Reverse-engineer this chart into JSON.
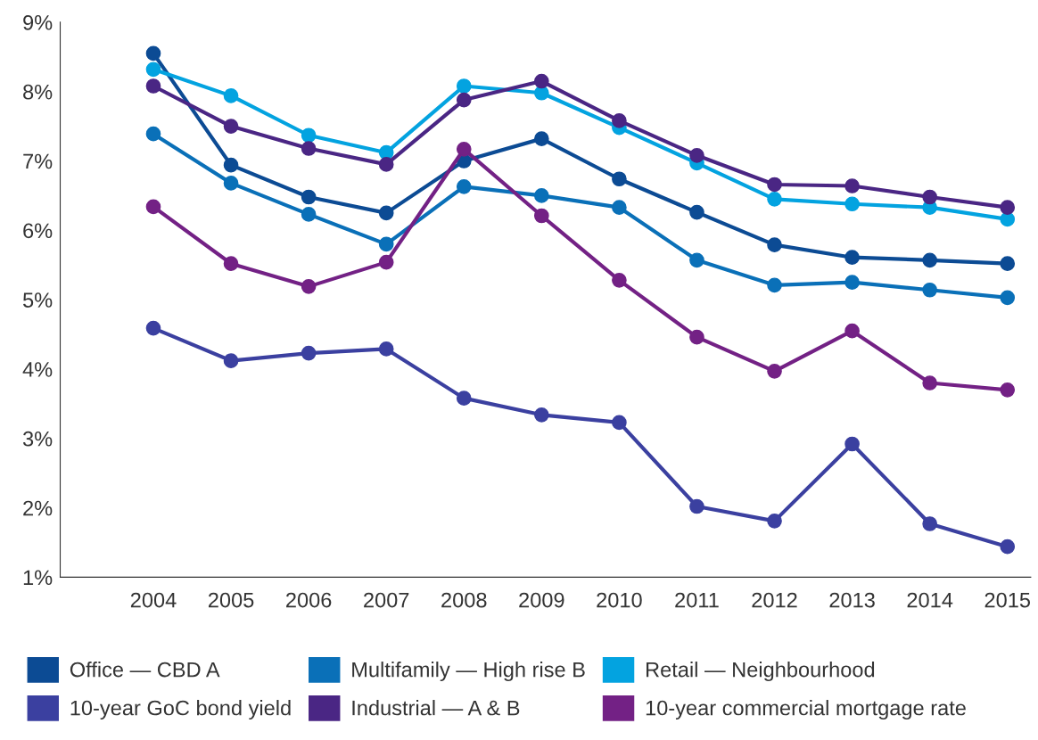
{
  "chart_data": {
    "type": "line",
    "categories": [
      "2004",
      "2005",
      "2006",
      "2007",
      "2008",
      "2009",
      "2010",
      "2011",
      "2012",
      "2013",
      "2014",
      "2015"
    ],
    "series": [
      {
        "name": "Office — CBD A",
        "color": "#0c4b94",
        "values": [
          8.55,
          6.94,
          6.48,
          6.25,
          7.0,
          7.32,
          6.74,
          6.26,
          5.79,
          5.61,
          5.57,
          5.52
        ]
      },
      {
        "name": "Multifamily — High rise B",
        "color": "#0a70b8",
        "values": [
          7.39,
          6.68,
          6.23,
          5.8,
          6.63,
          6.5,
          6.33,
          5.57,
          5.21,
          5.25,
          5.14,
          5.03
        ]
      },
      {
        "name": "Retail — Neighbourhood",
        "color": "#03a3e0",
        "values": [
          8.32,
          7.94,
          7.37,
          7.12,
          8.08,
          7.98,
          7.48,
          6.97,
          6.45,
          6.38,
          6.33,
          6.16
        ]
      },
      {
        "name": "10-year GoC bond yield",
        "color": "#3b40a0",
        "values": [
          4.59,
          4.12,
          4.23,
          4.29,
          3.58,
          3.34,
          3.23,
          2.02,
          1.81,
          2.92,
          1.77,
          1.44
        ]
      },
      {
        "name": "Industrial — A & B",
        "color": "#4a2684",
        "values": [
          8.08,
          7.5,
          7.18,
          6.95,
          7.88,
          8.15,
          7.58,
          7.08,
          6.66,
          6.64,
          6.48,
          6.33
        ]
      },
      {
        "name": "10-year commercial mortgage rate",
        "color": "#732185",
        "values": [
          6.34,
          5.52,
          5.19,
          5.54,
          7.17,
          6.21,
          5.28,
          4.46,
          3.97,
          4.55,
          3.8,
          3.7
        ]
      }
    ],
    "ylim": [
      1,
      9
    ],
    "yticks": [
      {
        "value": 1,
        "label": "1%"
      },
      {
        "value": 2,
        "label": "2%"
      },
      {
        "value": 3,
        "label": "3%"
      },
      {
        "value": 4,
        "label": "4%"
      },
      {
        "value": 5,
        "label": "5%"
      },
      {
        "value": 6,
        "label": "6%"
      },
      {
        "value": 7,
        "label": "7%"
      },
      {
        "value": 8,
        "label": "8%"
      },
      {
        "value": 9,
        "label": "9%"
      }
    ],
    "grid": false,
    "legend": "bottom",
    "marker": "circle",
    "line_style": "solid"
  }
}
